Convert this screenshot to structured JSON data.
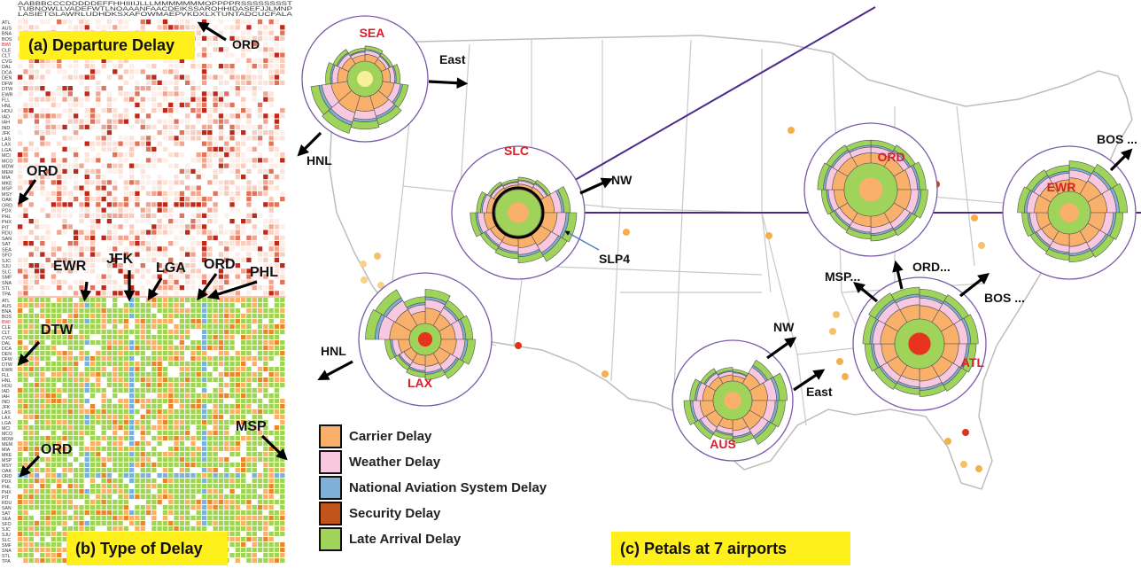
{
  "panels": {
    "a_label": "(a) Departure Delay",
    "b_label": "(b) Type of Delay",
    "c_label": "(c) Petals at 7 airports"
  },
  "matrix_row_labels": [
    "ATL",
    "AUS",
    "BNA",
    "BOS",
    "BWI",
    "CLE",
    "CLT",
    "CVG",
    "DAL",
    "DCA",
    "DEN",
    "DFW",
    "DTW",
    "EWR",
    "FLL",
    "HNL",
    "HOU",
    "IAD",
    "IAH",
    "IND",
    "JFK",
    "LAS",
    "LAX",
    "LGA",
    "MCI",
    "MCO",
    "MDW",
    "MEM",
    "MIA",
    "MKE",
    "MSP",
    "MSY",
    "OAK",
    "ORD",
    "PDX",
    "PHL",
    "PHX",
    "PIT",
    "RDU",
    "SAN",
    "SAT",
    "SEA",
    "SFO",
    "SJC",
    "SJU",
    "SLC",
    "SMF",
    "SNA",
    "STL",
    "TPA"
  ],
  "matrix_col_header_rows": [
    "AABBBCCCDDDDDEFFHHIIIIJLLLMMMMMMMOPPPPRSSSSSSSST",
    "TUBNOWLLVADEFWTLNOAAANFAACDEIKSSAROHHIDASEFJJLMNP",
    "LASIETGLAWRLUDHDKSXAFOWMAEPVKDXLXTUNTADCUCFALA"
  ],
  "matrix_annotations": {
    "a": [
      "ORD",
      "ORD"
    ],
    "b_top": [
      "EWR",
      "JFK",
      "LGA",
      "ORD",
      "PHL"
    ],
    "b_side": [
      "DTW",
      "ORD",
      "MSP"
    ]
  },
  "airports": [
    {
      "code": "SEA",
      "arrows": [
        "East",
        "HNL"
      ]
    },
    {
      "code": "SLC",
      "arrows": [
        "NW",
        "SLP4"
      ]
    },
    {
      "code": "LAX",
      "arrows": [
        "HNL"
      ]
    },
    {
      "code": "AUS",
      "arrows": [
        "NW",
        "East"
      ]
    },
    {
      "code": "ORD",
      "arrows": []
    },
    {
      "code": "EWR",
      "arrows": [
        "BOS ..."
      ]
    },
    {
      "code": "ATL",
      "arrows": [
        "MSP...",
        "ORD...",
        "BOS ..."
      ]
    }
  ],
  "legend": [
    {
      "label": "Carrier Delay",
      "color": "#f9b06a"
    },
    {
      "label": "Weather Delay",
      "color": "#f8c8e0"
    },
    {
      "label": "National Aviation System Delay",
      "color": "#7fb0d8"
    },
    {
      "label": "Security Delay",
      "color": "#c0541a"
    },
    {
      "label": "Late Arrival Delay",
      "color": "#9fd35a"
    }
  ],
  "colors": {
    "heat_low": "#fbe3da",
    "heat_high": "#c0281a",
    "airport_label": "#d8202a",
    "flight_line": "#4b2a8a",
    "panel_badge": "#ffef1a"
  }
}
